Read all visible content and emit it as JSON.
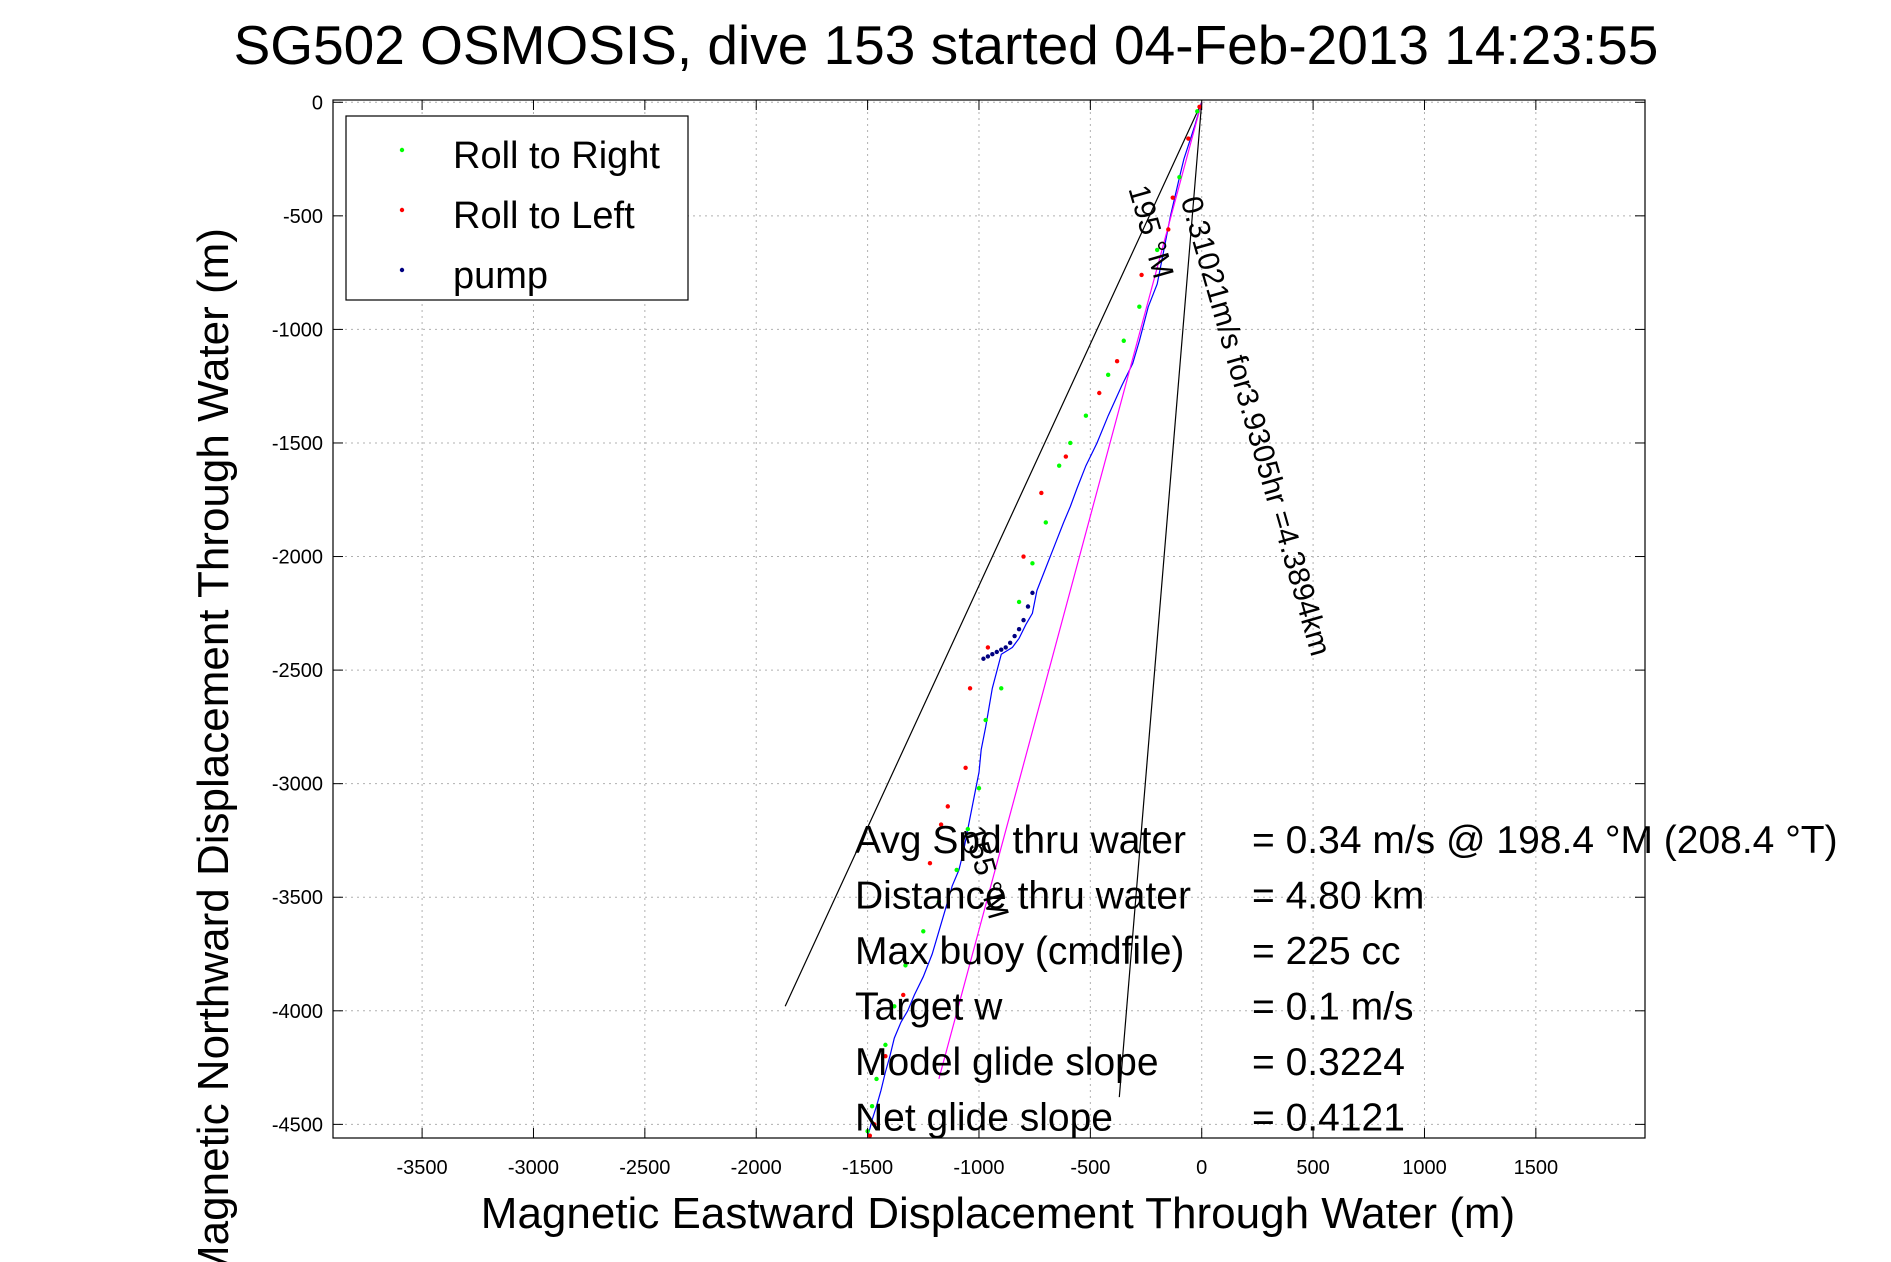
{
  "chart_data": {
    "type": "line",
    "title": "SG502 OSMOSIS, dive 153 started 04-Feb-2013 14:23:55",
    "xlabel": "Magnetic Eastward Displacement Through Water (m)",
    "ylabel": "Magnetic Northward Displacement Through Water (m)",
    "xlim": [
      -3900,
      1990
    ],
    "ylim": [
      -4560,
      10
    ],
    "x_ticks": [
      -3500,
      -3000,
      -2500,
      -2000,
      -1500,
      -1000,
      -500,
      0,
      500,
      1000,
      1500
    ],
    "y_ticks": [
      0,
      -500,
      -1000,
      -1500,
      -2000,
      -2500,
      -3000,
      -3500,
      -4000,
      -4500
    ],
    "grid": true,
    "legend_position": "top-left",
    "legend": [
      {
        "label": "Roll to Right",
        "color": "#00ff00"
      },
      {
        "label": "Roll to Left",
        "color": "#ff0000"
      },
      {
        "label": "pump",
        "color": "#000080"
      }
    ],
    "series": [
      {
        "color": "#0000ff",
        "x": [
          0,
          -30,
          -80,
          -100,
          -140,
          -170,
          -200,
          -240,
          -280,
          -310,
          -360,
          -420,
          -470,
          -520,
          -560,
          -590,
          -620,
          -660,
          -700,
          -740,
          -760,
          -790,
          -820,
          -850,
          -900,
          -940,
          -970,
          -990,
          -1000,
          -1020,
          -1050,
          -1070,
          -1090,
          -1120,
          -1150,
          -1180,
          -1210,
          -1250,
          -1290,
          -1320,
          -1350,
          -1380,
          -1400,
          -1420,
          -1440,
          -1460,
          -1480,
          -1490,
          -1500
        ],
        "y": [
          0,
          -100,
          -250,
          -330,
          -500,
          -650,
          -800,
          -900,
          -1050,
          -1150,
          -1250,
          -1380,
          -1500,
          -1600,
          -1700,
          -1780,
          -1850,
          -1950,
          -2050,
          -2150,
          -2250,
          -2300,
          -2360,
          -2400,
          -2430,
          -2580,
          -2750,
          -2850,
          -2950,
          -3050,
          -3200,
          -3300,
          -3380,
          -3450,
          -3550,
          -3650,
          -3750,
          -3850,
          -3930,
          -4000,
          -4050,
          -4120,
          -4200,
          -4270,
          -4350,
          -4420,
          -4480,
          -4520,
          -4550
        ]
      },
      {
        "color": "#ff00ff",
        "x": [
          0,
          -1180
        ],
        "y": [
          0,
          -4300
        ]
      }
    ],
    "points": {
      "roll_right": {
        "x": [
          -20,
          -100,
          -200,
          -280,
          -350,
          -420,
          -520,
          -590,
          -640,
          -700,
          -760,
          -820,
          -900,
          -970,
          -1000,
          -1050,
          -1100,
          -1180,
          -1250,
          -1330,
          -1380,
          -1420,
          -1460,
          -1480,
          -1500
        ],
        "y": [
          -40,
          -330,
          -650,
          -900,
          -1050,
          -1200,
          -1380,
          -1500,
          -1600,
          -1850,
          -2030,
          -2200,
          -2580,
          -2720,
          -3020,
          -3200,
          -3380,
          -3520,
          -3650,
          -3800,
          -3980,
          -4150,
          -4300,
          -4420,
          -4530
        ]
      },
      "roll_left": {
        "x": [
          -10,
          -60,
          -130,
          -150,
          -270,
          -380,
          -460,
          -610,
          -720,
          -800,
          -960,
          -1040,
          -1060,
          -1140,
          -1170,
          -1220,
          -1340,
          -1420,
          -1470,
          -1490
        ],
        "y": [
          -20,
          -160,
          -420,
          -560,
          -760,
          -1140,
          -1280,
          -1560,
          -1720,
          -2000,
          -2400,
          -2580,
          -2930,
          -3100,
          -3180,
          -3350,
          -3930,
          -4200,
          -4500,
          -4550
        ]
      },
      "pump": {
        "x": [
          -760,
          -780,
          -800,
          -820,
          -840,
          -860,
          -880,
          -900,
          -920,
          -940,
          -960,
          -980
        ],
        "y": [
          -2160,
          -2220,
          -2280,
          -2320,
          -2350,
          -2380,
          -2400,
          -2410,
          -2420,
          -2430,
          -2440,
          -2450
        ]
      }
    },
    "reference_lines": [
      {
        "x": [
          0,
          -1870
        ],
        "y": [
          0,
          -3980
        ]
      },
      {
        "x": [
          0,
          -370
        ],
        "y": [
          0,
          -4380
        ]
      }
    ],
    "annotations": [
      {
        "text": "0.31021m/s for3.9305hr =4.3894km",
        "x": -95,
        "y": -430,
        "rotation": 74
      },
      {
        "text": "195 °M",
        "x": -330,
        "y": -380,
        "rotation": 74
      },
      {
        "text": "155 °M",
        "x": -1070,
        "y": -3200,
        "rotation": 74
      }
    ],
    "stats": [
      {
        "label": "Avg Spd thru water",
        "value": "=  0.34 m/s @ 198.4 °M (208.4 °T)"
      },
      {
        "label": "Distance thru water",
        "value": "=  4.80 km"
      },
      {
        "label": "Max buoy (cmdfile)",
        "value": "= 225 cc"
      },
      {
        "label": "Target w",
        "value": "= 0.1 m/s"
      },
      {
        "label": "Model glide slope",
        "value": "= 0.3224"
      },
      {
        "label": "Net glide slope",
        "value": "= 0.4121"
      }
    ]
  }
}
